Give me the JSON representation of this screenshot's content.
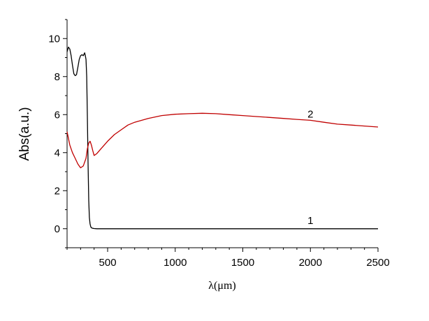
{
  "chart_data": {
    "type": "line",
    "title": "",
    "xlabel": "λ(μm)",
    "ylabel": "Abs(a.u.)",
    "xlim": [
      200,
      2500
    ],
    "ylim": [
      -1,
      11
    ],
    "x_ticks": [
      500,
      1000,
      1500,
      2000,
      2500
    ],
    "y_ticks": [
      0,
      2,
      4,
      6,
      8,
      10
    ],
    "grid": false,
    "legend": "none",
    "series": [
      {
        "name": "1",
        "color": "#000000",
        "label_at": [
          2000,
          0.25
        ],
        "x": [
          200,
          210,
          220,
          230,
          240,
          250,
          260,
          270,
          280,
          290,
          300,
          310,
          320,
          330,
          335,
          340,
          345,
          350,
          355,
          360,
          365,
          370,
          375,
          380,
          390,
          400,
          420,
          450,
          500,
          700,
          1000,
          1500,
          2000,
          2500
        ],
        "y": [
          9.3,
          9.55,
          9.45,
          9.1,
          8.6,
          8.15,
          8.05,
          8.1,
          8.5,
          8.9,
          9.1,
          9.15,
          9.1,
          9.25,
          9.1,
          8.9,
          8.0,
          6.0,
          3.5,
          1.5,
          0.6,
          0.25,
          0.1,
          0.05,
          0.02,
          0.01,
          0.0,
          0.0,
          0.0,
          0.0,
          0.0,
          0.0,
          0.0,
          0.0
        ]
      },
      {
        "name": "2",
        "color": "#c00000",
        "label_at": [
          2000,
          5.85
        ],
        "x": [
          200,
          220,
          240,
          260,
          280,
          300,
          320,
          340,
          350,
          360,
          370,
          380,
          390,
          400,
          420,
          450,
          500,
          550,
          600,
          650,
          700,
          800,
          900,
          1000,
          1100,
          1200,
          1300,
          1400,
          1500,
          1600,
          1700,
          1800,
          1900,
          2000,
          2100,
          2200,
          2300,
          2400,
          2500
        ],
        "y": [
          5.1,
          4.4,
          4.0,
          3.7,
          3.4,
          3.2,
          3.3,
          3.7,
          4.2,
          4.5,
          4.6,
          4.4,
          4.1,
          3.85,
          3.95,
          4.2,
          4.6,
          4.95,
          5.2,
          5.45,
          5.6,
          5.8,
          5.95,
          6.02,
          6.05,
          6.07,
          6.05,
          6.0,
          5.95,
          5.9,
          5.85,
          5.8,
          5.75,
          5.7,
          5.6,
          5.5,
          5.45,
          5.4,
          5.35
        ]
      }
    ]
  }
}
